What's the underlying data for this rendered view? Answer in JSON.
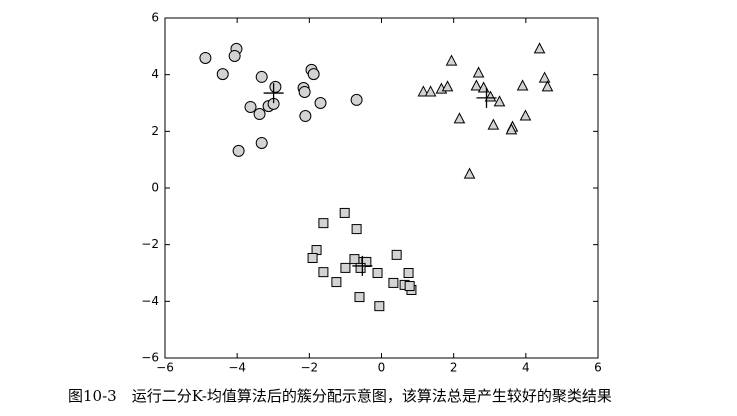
{
  "chart_data": {
    "type": "scatter",
    "caption": "图10-3　运行二分K-均值算法后的簇分配示意图，该算法总是产生较好的聚类结果",
    "xlim": [
      -6,
      6
    ],
    "ylim": [
      -6,
      6
    ],
    "xticks": [
      {
        "value": -6,
        "label": "−6"
      },
      {
        "value": -4,
        "label": "−4"
      },
      {
        "value": -2,
        "label": "−2"
      },
      0,
      2,
      4,
      6
    ],
    "yticks": [
      {
        "value": -6,
        "label": "−6"
      },
      {
        "value": -4,
        "label": "−4"
      },
      {
        "value": -2,
        "label": "−2"
      },
      0,
      2,
      4,
      6
    ],
    "grid": false,
    "series": [
      {
        "marker": "circle",
        "color": "#d3d3d3",
        "x": [
          -4.88,
          -4.02,
          -4.07,
          -4.4,
          -3.32,
          -3.63,
          -3.38,
          -3.13,
          -2.94,
          -2.99,
          -3.32,
          -3.96,
          -1.94,
          -1.88,
          -2.16,
          -2.13,
          -2.11,
          -1.69,
          -0.69
        ],
        "y": [
          4.59,
          4.91,
          4.66,
          4.02,
          3.92,
          2.86,
          2.61,
          2.89,
          3.57,
          2.97,
          1.59,
          1.31,
          4.17,
          4.02,
          3.53,
          3.39,
          2.54,
          3.0,
          3.11
        ]
      },
      {
        "marker": "triangle",
        "color": "#d3d3d3",
        "x": [
          1.94,
          1.16,
          1.36,
          1.66,
          1.83,
          2.69,
          2.63,
          2.83,
          3.02,
          3.27,
          2.16,
          3.1,
          3.63,
          3.6,
          3.91,
          3.99,
          4.38,
          4.52,
          4.6,
          2.44
        ],
        "y": [
          4.48,
          3.39,
          3.39,
          3.49,
          3.57,
          4.06,
          3.6,
          3.53,
          3.21,
          3.04,
          2.44,
          2.22,
          2.15,
          2.05,
          3.6,
          2.54,
          4.91,
          3.88,
          3.57,
          0.49
        ]
      },
      {
        "marker": "square",
        "color": "#d3d3d3",
        "x": [
          -1.02,
          -1.61,
          -0.69,
          -1.8,
          -1.91,
          -1.61,
          -1.25,
          -1.0,
          -0.75,
          -0.5,
          -0.42,
          -0.58,
          -0.11,
          -0.61,
          -0.06,
          0.42,
          0.33,
          0.64,
          0.75,
          0.83,
          0.78
        ],
        "y": [
          -0.88,
          -1.24,
          -1.45,
          -2.19,
          -2.47,
          -2.97,
          -3.32,
          -2.82,
          -2.51,
          -2.61,
          -2.61,
          -2.82,
          -3.0,
          -3.85,
          -4.17,
          -2.36,
          -3.35,
          -3.42,
          -3.0,
          -3.6,
          -3.46
        ]
      },
      {
        "marker": "plus",
        "color": "#000000",
        "x": [
          -2.99,
          2.91,
          -0.53
        ],
        "y": [
          3.35,
          3.18,
          -2.75
        ]
      }
    ]
  }
}
